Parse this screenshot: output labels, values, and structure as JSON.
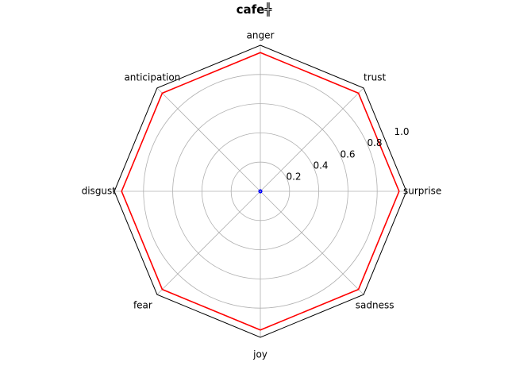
{
  "chart_data": {
    "type": "radar",
    "title": "cafe╬",
    "axes": [
      "anger",
      "trust",
      "surprise",
      "sadness",
      "joy",
      "fear",
      "disgust",
      "anticipation"
    ],
    "rlim": [
      0,
      1.0
    ],
    "r_ticks": [
      "0.2",
      "0.4",
      "0.6",
      "0.8",
      "1.0"
    ],
    "grid": true,
    "series": [
      {
        "color": "#ff0000",
        "values": [
          0.95,
          0.95,
          0.95,
          0.95,
          0.95,
          0.95,
          0.95,
          0.95
        ]
      },
      {
        "color": "#0000ff",
        "values": [
          0.01,
          0.01,
          0.01,
          0.01,
          0.01,
          0.01,
          0.01,
          0.01
        ]
      }
    ],
    "frame_color": "#000000",
    "grid_color": "#b0b0b0"
  }
}
